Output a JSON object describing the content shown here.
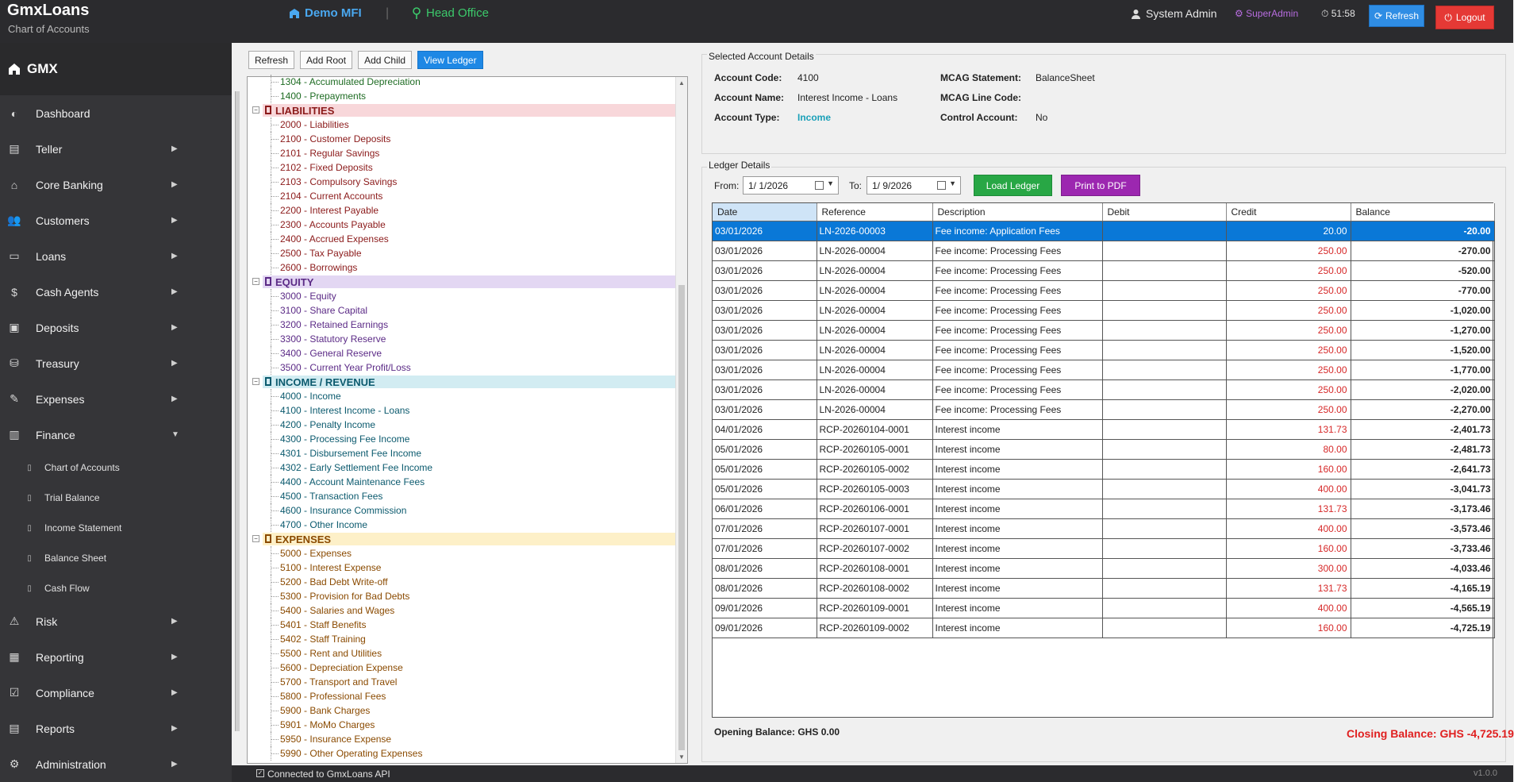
{
  "header": {
    "app_title": "GmxLoans",
    "app_subtitle": "Chart of Accounts",
    "org_name": "Demo MFI",
    "separator": "|",
    "branch": "Head Office",
    "user_name": "System Admin",
    "role": "SuperAdmin",
    "timer": "51:58",
    "refresh_label": "Refresh",
    "logout_label": "Logout"
  },
  "sidebar": {
    "brand": "GMX",
    "items": [
      {
        "label": "Dashboard",
        "icon": "gauge-icon",
        "arrow": ""
      },
      {
        "label": "Teller",
        "icon": "teller-icon",
        "arrow": "▶"
      },
      {
        "label": "Core Banking",
        "icon": "bank-icon",
        "arrow": "▶"
      },
      {
        "label": "Customers",
        "icon": "users-icon",
        "arrow": "▶"
      },
      {
        "label": "Loans",
        "icon": "card-icon",
        "arrow": "▶"
      },
      {
        "label": "Cash Agents",
        "icon": "money-bag-icon",
        "arrow": "▶"
      },
      {
        "label": "Deposits",
        "icon": "deposit-icon",
        "arrow": "▶"
      },
      {
        "label": "Treasury",
        "icon": "treasury-icon",
        "arrow": "▶"
      },
      {
        "label": "Expenses",
        "icon": "expenses-icon",
        "arrow": "▶"
      },
      {
        "label": "Finance",
        "icon": "finance-chart-icon",
        "arrow": "▼"
      }
    ],
    "sub_items": [
      {
        "label": "Chart of Accounts"
      },
      {
        "label": "Trial Balance"
      },
      {
        "label": "Income Statement"
      },
      {
        "label": "Balance Sheet"
      },
      {
        "label": "Cash Flow"
      }
    ],
    "items_after": [
      {
        "label": "Risk",
        "icon": "warning-icon",
        "arrow": "▶"
      },
      {
        "label": "Reporting",
        "icon": "bar-chart-icon",
        "arrow": "▶"
      },
      {
        "label": "Compliance",
        "icon": "compliance-icon",
        "arrow": "▶"
      },
      {
        "label": "Reports",
        "icon": "report-icon",
        "arrow": "▶"
      },
      {
        "label": "Administration",
        "icon": "gear-icon",
        "arrow": "▶"
      }
    ]
  },
  "tree_toolbar": {
    "refresh": "Refresh",
    "add_root": "Add Root",
    "add_child": "Add Child",
    "view_ledger": "View Ledger"
  },
  "tree": [
    {
      "type": "row",
      "cls": "c-asset",
      "label": "1304 - Accumulated Depreciation"
    },
    {
      "type": "row",
      "cls": "c-asset",
      "label": "1400 - Prepayments"
    },
    {
      "type": "cat",
      "cls": "liab",
      "label": "LIABILITIES"
    },
    {
      "type": "row",
      "cls": "c-liab",
      "label": "2000 - Liabilities"
    },
    {
      "type": "row",
      "cls": "c-liab",
      "label": "2100 - Customer Deposits"
    },
    {
      "type": "row",
      "cls": "c-liab",
      "label": "2101 - Regular Savings"
    },
    {
      "type": "row",
      "cls": "c-liab",
      "label": "2102 - Fixed Deposits"
    },
    {
      "type": "row",
      "cls": "c-liab",
      "label": "2103 - Compulsory Savings"
    },
    {
      "type": "row",
      "cls": "c-liab",
      "label": "2104 - Current Accounts"
    },
    {
      "type": "row",
      "cls": "c-liab",
      "label": "2200 - Interest Payable"
    },
    {
      "type": "row",
      "cls": "c-liab",
      "label": "2300 - Accounts Payable"
    },
    {
      "type": "row",
      "cls": "c-liab",
      "label": "2400 - Accrued Expenses"
    },
    {
      "type": "row",
      "cls": "c-liab",
      "label": "2500 - Tax Payable"
    },
    {
      "type": "row",
      "cls": "c-liab",
      "label": "2600 - Borrowings"
    },
    {
      "type": "cat",
      "cls": "eq",
      "label": "EQUITY"
    },
    {
      "type": "row",
      "cls": "c-eq",
      "label": "3000 - Equity"
    },
    {
      "type": "row",
      "cls": "c-eq",
      "label": "3100 - Share Capital"
    },
    {
      "type": "row",
      "cls": "c-eq",
      "label": "3200 - Retained Earnings"
    },
    {
      "type": "row",
      "cls": "c-eq",
      "label": "3300 - Statutory Reserve"
    },
    {
      "type": "row",
      "cls": "c-eq",
      "label": "3400 - General Reserve"
    },
    {
      "type": "row",
      "cls": "c-eq",
      "label": "3500 - Current Year Profit/Loss"
    },
    {
      "type": "cat",
      "cls": "inc",
      "label": "INCOME / REVENUE"
    },
    {
      "type": "row",
      "cls": "c-inc",
      "label": "4000 - Income"
    },
    {
      "type": "row",
      "cls": "c-inc",
      "label": "4100 - Interest Income - Loans"
    },
    {
      "type": "row",
      "cls": "c-inc",
      "label": "4200 - Penalty Income"
    },
    {
      "type": "row",
      "cls": "c-inc",
      "label": "4300 - Processing Fee Income"
    },
    {
      "type": "row",
      "cls": "c-inc",
      "label": "4301 - Disbursement Fee Income"
    },
    {
      "type": "row",
      "cls": "c-inc",
      "label": "4302 - Early Settlement Fee Income"
    },
    {
      "type": "row",
      "cls": "c-inc",
      "label": "4400 - Account Maintenance Fees"
    },
    {
      "type": "row",
      "cls": "c-inc",
      "label": "4500 - Transaction Fees"
    },
    {
      "type": "row",
      "cls": "c-inc",
      "label": "4600 - Insurance Commission"
    },
    {
      "type": "row",
      "cls": "c-inc",
      "label": "4700 - Other Income"
    },
    {
      "type": "cat",
      "cls": "exp",
      "label": "EXPENSES"
    },
    {
      "type": "row",
      "cls": "c-exp",
      "label": "5000 - Expenses"
    },
    {
      "type": "row",
      "cls": "c-exp",
      "label": "5100 - Interest Expense"
    },
    {
      "type": "row",
      "cls": "c-exp",
      "label": "5200 - Bad Debt Write-off"
    },
    {
      "type": "row",
      "cls": "c-exp",
      "label": "5300 - Provision for Bad Debts"
    },
    {
      "type": "row",
      "cls": "c-exp",
      "label": "5400 - Salaries and Wages"
    },
    {
      "type": "row",
      "cls": "c-exp",
      "label": "5401 - Staff Benefits"
    },
    {
      "type": "row",
      "cls": "c-exp",
      "label": "5402 - Staff Training"
    },
    {
      "type": "row",
      "cls": "c-exp",
      "label": "5500 - Rent and Utilities"
    },
    {
      "type": "row",
      "cls": "c-exp",
      "label": "5600 - Depreciation Expense"
    },
    {
      "type": "row",
      "cls": "c-exp",
      "label": "5700 - Transport and Travel"
    },
    {
      "type": "row",
      "cls": "c-exp",
      "label": "5800 - Professional Fees"
    },
    {
      "type": "row",
      "cls": "c-exp",
      "label": "5900 - Bank Charges"
    },
    {
      "type": "row",
      "cls": "c-exp",
      "label": "5901 - MoMo Charges"
    },
    {
      "type": "row",
      "cls": "c-exp",
      "label": "5950 - Insurance Expense"
    },
    {
      "type": "row",
      "cls": "c-exp",
      "label": "5990 - Other Operating Expenses"
    }
  ],
  "details": {
    "group_title": "Selected Account Details",
    "account_code_label": "Account Code:",
    "account_code": "4100",
    "account_name_label": "Account Name:",
    "account_name": "Interest Income - Loans",
    "account_type_label": "Account Type:",
    "account_type": "Income",
    "mcag_statement_label": "MCAG Statement:",
    "mcag_statement": "BalanceSheet",
    "mcag_line_label": "MCAG Line Code:",
    "control_account_label": "Control Account:",
    "control_account": "No"
  },
  "ledger": {
    "group_title": "Ledger Details",
    "from_label": "From:",
    "from_value": "1/  1/2026",
    "to_label": "To:",
    "to_value": "1/  9/2026",
    "load_label": "Load Ledger",
    "print_label": "Print to PDF",
    "columns": [
      "Date",
      "Reference",
      "Description",
      "Debit",
      "Credit",
      "Balance"
    ],
    "rows": [
      {
        "date": "03/01/2026",
        "ref": "LN-2026-00003",
        "desc": "Fee income: Application Fees",
        "debit": "",
        "credit": "20.00",
        "bal": "-20.00"
      },
      {
        "date": "03/01/2026",
        "ref": "LN-2026-00004",
        "desc": "Fee income: Processing Fees",
        "debit": "",
        "credit": "250.00",
        "bal": "-270.00"
      },
      {
        "date": "03/01/2026",
        "ref": "LN-2026-00004",
        "desc": "Fee income: Processing Fees",
        "debit": "",
        "credit": "250.00",
        "bal": "-520.00"
      },
      {
        "date": "03/01/2026",
        "ref": "LN-2026-00004",
        "desc": "Fee income: Processing Fees",
        "debit": "",
        "credit": "250.00",
        "bal": "-770.00"
      },
      {
        "date": "03/01/2026",
        "ref": "LN-2026-00004",
        "desc": "Fee income: Processing Fees",
        "debit": "",
        "credit": "250.00",
        "bal": "-1,020.00"
      },
      {
        "date": "03/01/2026",
        "ref": "LN-2026-00004",
        "desc": "Fee income: Processing Fees",
        "debit": "",
        "credit": "250.00",
        "bal": "-1,270.00"
      },
      {
        "date": "03/01/2026",
        "ref": "LN-2026-00004",
        "desc": "Fee income: Processing Fees",
        "debit": "",
        "credit": "250.00",
        "bal": "-1,520.00"
      },
      {
        "date": "03/01/2026",
        "ref": "LN-2026-00004",
        "desc": "Fee income: Processing Fees",
        "debit": "",
        "credit": "250.00",
        "bal": "-1,770.00"
      },
      {
        "date": "03/01/2026",
        "ref": "LN-2026-00004",
        "desc": "Fee income: Processing Fees",
        "debit": "",
        "credit": "250.00",
        "bal": "-2,020.00"
      },
      {
        "date": "03/01/2026",
        "ref": "LN-2026-00004",
        "desc": "Fee income: Processing Fees",
        "debit": "",
        "credit": "250.00",
        "bal": "-2,270.00"
      },
      {
        "date": "04/01/2026",
        "ref": "RCP-20260104-0001",
        "desc": "Interest income",
        "debit": "",
        "credit": "131.73",
        "bal": "-2,401.73"
      },
      {
        "date": "05/01/2026",
        "ref": "RCP-20260105-0001",
        "desc": "Interest income",
        "debit": "",
        "credit": "80.00",
        "bal": "-2,481.73"
      },
      {
        "date": "05/01/2026",
        "ref": "RCP-20260105-0002",
        "desc": "Interest income",
        "debit": "",
        "credit": "160.00",
        "bal": "-2,641.73"
      },
      {
        "date": "05/01/2026",
        "ref": "RCP-20260105-0003",
        "desc": "Interest income",
        "debit": "",
        "credit": "400.00",
        "bal": "-3,041.73"
      },
      {
        "date": "06/01/2026",
        "ref": "RCP-20260106-0001",
        "desc": "Interest income",
        "debit": "",
        "credit": "131.73",
        "bal": "-3,173.46"
      },
      {
        "date": "07/01/2026",
        "ref": "RCP-20260107-0001",
        "desc": "Interest income",
        "debit": "",
        "credit": "400.00",
        "bal": "-3,573.46"
      },
      {
        "date": "07/01/2026",
        "ref": "RCP-20260107-0002",
        "desc": "Interest income",
        "debit": "",
        "credit": "160.00",
        "bal": "-3,733.46"
      },
      {
        "date": "08/01/2026",
        "ref": "RCP-20260108-0001",
        "desc": "Interest income",
        "debit": "",
        "credit": "300.00",
        "bal": "-4,033.46"
      },
      {
        "date": "08/01/2026",
        "ref": "RCP-20260108-0002",
        "desc": "Interest income",
        "debit": "",
        "credit": "131.73",
        "bal": "-4,165.19"
      },
      {
        "date": "09/01/2026",
        "ref": "RCP-20260109-0001",
        "desc": "Interest income",
        "debit": "",
        "credit": "400.00",
        "bal": "-4,565.19"
      },
      {
        "date": "09/01/2026",
        "ref": "RCP-20260109-0002",
        "desc": "Interest income",
        "debit": "",
        "credit": "160.00",
        "bal": "-4,725.19"
      }
    ],
    "opening_balance": "Opening Balance: GHS 0.00",
    "closing_balance": "Closing Balance: GHS -4,725.19"
  },
  "status": {
    "text": "Connected to GmxLoans API",
    "version": "v1.0.0"
  }
}
